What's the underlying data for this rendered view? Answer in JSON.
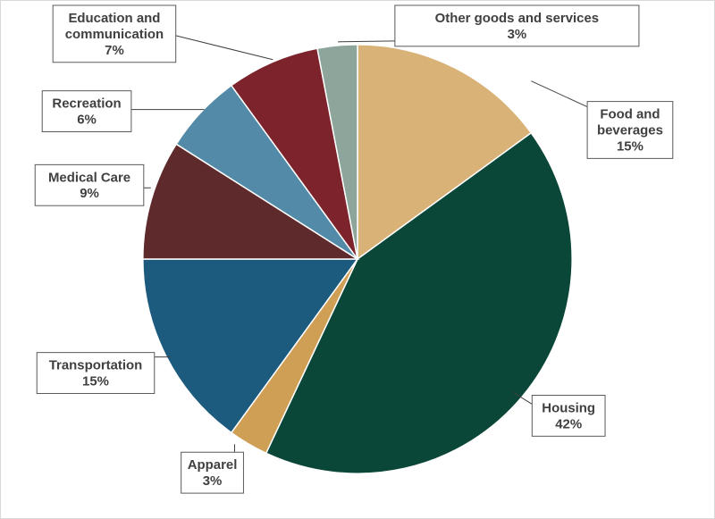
{
  "chart_data": {
    "type": "pie",
    "title": "",
    "start_angle_deg": 0,
    "direction": "clockwise",
    "slices": [
      {
        "name": "Food and beverages",
        "label_lines": [
          "Food and",
          "beverages"
        ],
        "value": 15,
        "pct_label": "15%",
        "color": "#d9b277"
      },
      {
        "name": "Housing",
        "label_lines": [
          "Housing"
        ],
        "value": 42,
        "pct_label": "42%",
        "color": "#0b4739"
      },
      {
        "name": "Apparel",
        "label_lines": [
          "Apparel"
        ],
        "value": 3,
        "pct_label": "3%",
        "color": "#cf9f55"
      },
      {
        "name": "Transportation",
        "label_lines": [
          "Transportation"
        ],
        "value": 15,
        "pct_label": "15%",
        "color": "#1c5a7e"
      },
      {
        "name": "Medical Care",
        "label_lines": [
          "Medical Care"
        ],
        "value": 9,
        "pct_label": "9%",
        "color": "#5f2a2c"
      },
      {
        "name": "Recreation",
        "label_lines": [
          "Recreation"
        ],
        "value": 6,
        "pct_label": "6%",
        "color": "#538aa7"
      },
      {
        "name": "Education and communication",
        "label_lines": [
          "Education and",
          "communication"
        ],
        "value": 7,
        "pct_label": "7%",
        "color": "#7d232c"
      },
      {
        "name": "Other goods and services",
        "label_lines": [
          "Other goods and services"
        ],
        "value": 3,
        "pct_label": "3%",
        "color": "#8da59a"
      }
    ]
  }
}
